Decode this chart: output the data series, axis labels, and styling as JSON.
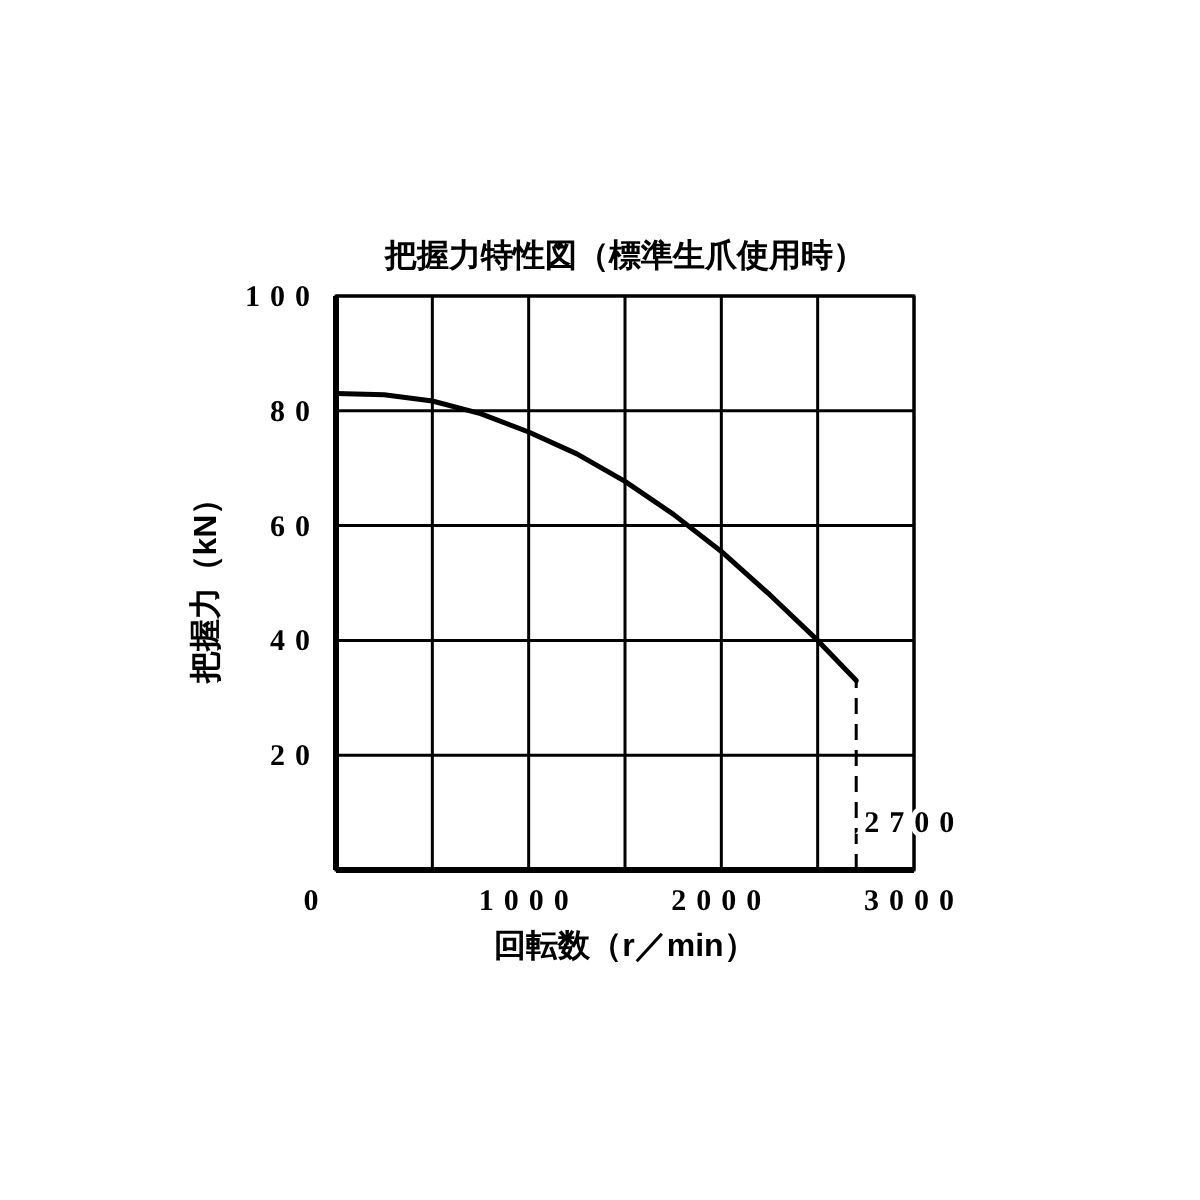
{
  "chart_data": {
    "type": "line",
    "title": "把握力特性図（標準生爪使用時）",
    "xlabel": "回転数（r／min）",
    "ylabel": "把握力（kN）",
    "x": [
      0,
      250,
      500,
      750,
      1000,
      1250,
      1500,
      1750,
      2000,
      2250,
      2500,
      2700
    ],
    "series": [
      {
        "color": "#000000",
        "values": [
          83,
          82.8,
          81.7,
          79.5,
          76.3,
          72.5,
          67.7,
          62,
          55.5,
          48,
          40,
          33
        ]
      }
    ],
    "xlim": [
      0,
      3000
    ],
    "xticks": [
      {
        "value": 0,
        "label": "0"
      },
      {
        "value": 500,
        "label": null
      },
      1000,
      {
        "value": 1500,
        "label": null
      },
      2000,
      {
        "value": 2500,
        "label": null
      },
      3000
    ],
    "ylim": [
      0,
      100
    ],
    "yticks": [
      {
        "value": 0,
        "label": null
      },
      20,
      40,
      60,
      80,
      100
    ],
    "ref_lines": [
      {
        "axis": "x",
        "value": 2700,
        "label": "2700",
        "line_style": "dashed",
        "color": "#000000"
      }
    ],
    "grid": true,
    "marker": "none",
    "line_style": "solid"
  }
}
